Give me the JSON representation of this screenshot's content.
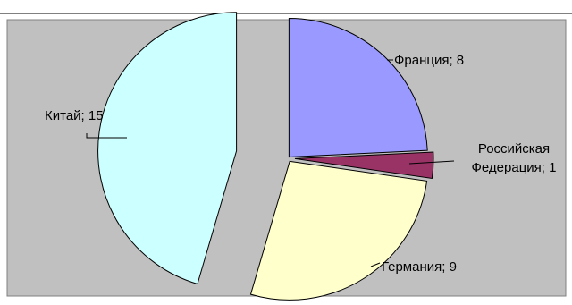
{
  "chart_data": {
    "type": "pie",
    "exploded": true,
    "slices": [
      {
        "label": "Франция",
        "value": 8,
        "data_label": "Франция; 8",
        "color": "#9999ff"
      },
      {
        "label": "Российская Федерация",
        "value": 1,
        "data_label_lines": [
          "Российская",
          "Федерация; 1"
        ],
        "color": "#993366"
      },
      {
        "label": "Германия",
        "value": 9,
        "data_label": "Германия; 9",
        "color": "#ffffcc"
      },
      {
        "label": "Китай",
        "value": 15,
        "data_label": "Китай; 15",
        "color": "#ccffff"
      }
    ],
    "legend": "none",
    "grid": false
  },
  "colors": {
    "plot_background": "#c0c0c0",
    "border": "#000000"
  }
}
